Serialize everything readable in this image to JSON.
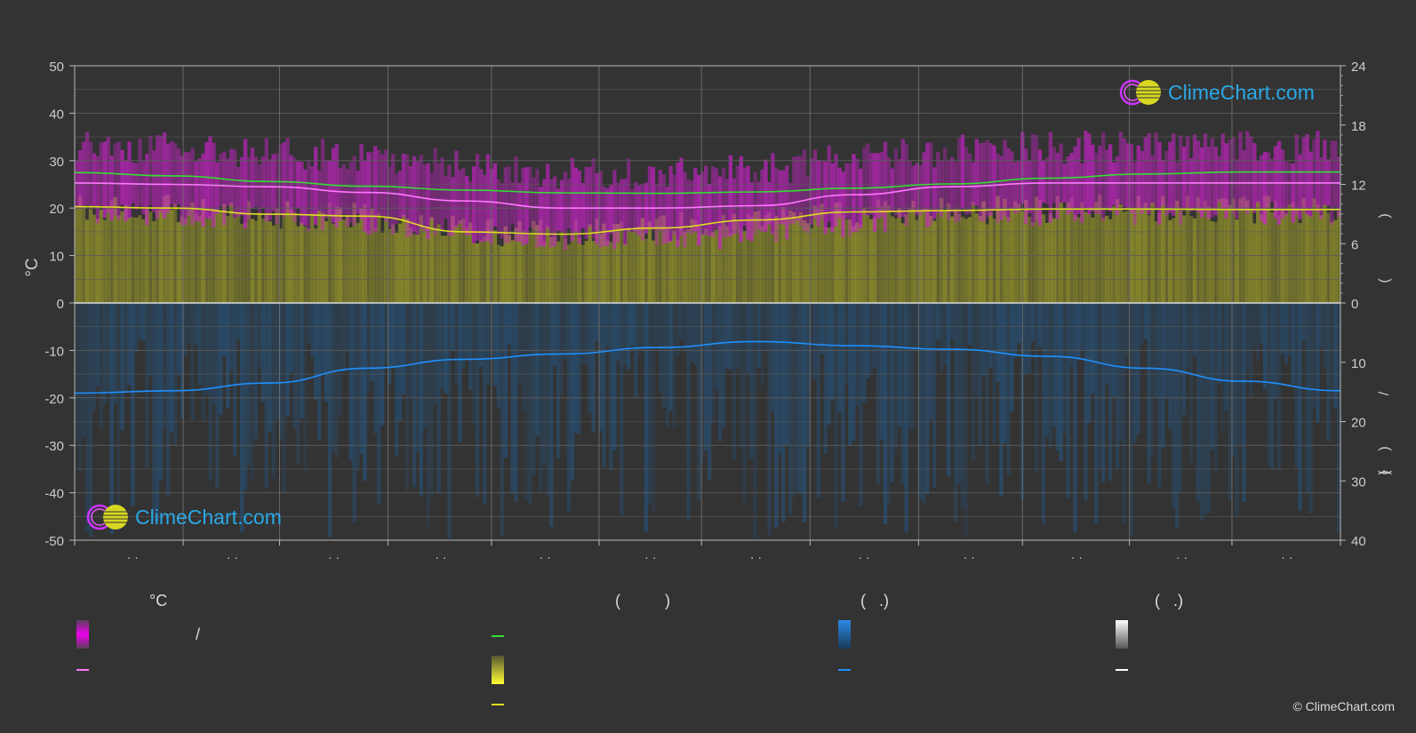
{
  "chart_data": {
    "type": "area",
    "left_axis": {
      "label": "°C",
      "ticks": [
        "50",
        "40",
        "30",
        "20",
        "10",
        "0",
        "-10",
        "-20",
        "-30",
        "-40",
        "-50"
      ],
      "range": [
        -50,
        50
      ]
    },
    "right_axis_top": {
      "ticks": [
        "24",
        "18",
        "12",
        "6",
        "0"
      ],
      "range": [
        0,
        24
      ]
    },
    "right_axis_bottom": {
      "ticks": [
        "10",
        "20",
        "30",
        "40"
      ],
      "range": [
        0,
        40
      ]
    },
    "right_axis_glyphs": [
      ")",
      "(",
      "/",
      ")",
      "(",
      ".",
      ")"
    ],
    "x_tick_labels": [
      "· ·",
      "· ·",
      "· ·",
      "· ·",
      "· ·",
      "· ·",
      "· ·",
      "· ·",
      "· ·",
      "· ·",
      "· ·",
      "· ·"
    ],
    "series": [
      {
        "name": "",
        "color": "#33dd33",
        "values": [
          27.5,
          26.8,
          25.6,
          24.6,
          23.8,
          23.2,
          23.1,
          23.4,
          24.2,
          25.1,
          26.3,
          27.2,
          27.6,
          27.6
        ]
      },
      {
        "name": "",
        "color": "#ff77ff",
        "values": [
          25.3,
          25.0,
          24.5,
          23.3,
          21.5,
          20.0,
          20.0,
          20.5,
          22.8,
          24.5,
          25.3,
          25.3,
          25.3,
          25.3
        ]
      },
      {
        "name": "",
        "color": "#dddd22",
        "values": [
          20.3,
          20.0,
          18.7,
          18.3,
          15.0,
          14.5,
          15.8,
          17.5,
          19.2,
          19.5,
          19.8,
          19.8,
          19.7,
          19.7
        ]
      },
      {
        "name": "",
        "color": "#1e90ff",
        "values": [
          15.2,
          14.8,
          13.5,
          11.0,
          9.5,
          8.6,
          7.5,
          6.5,
          7.2,
          7.8,
          9.0,
          11.0,
          13.2,
          14.8
        ]
      }
    ]
  },
  "legend": {
    "col1_header": "°C",
    "col1_slash": "/",
    "col2_header": "(          )",
    "col3_header": "(   .)",
    "col4_header": "(   .)"
  },
  "logo": {
    "text": "ClimeChart.com"
  },
  "copyright": "© ClimeChart.com",
  "colors": {
    "background": "#333333",
    "grid": "#555555",
    "axis": "#bbbbbb",
    "magenta": "#dd22dd",
    "yellow": "#b8b832",
    "blue": "#1e6eaa"
  }
}
